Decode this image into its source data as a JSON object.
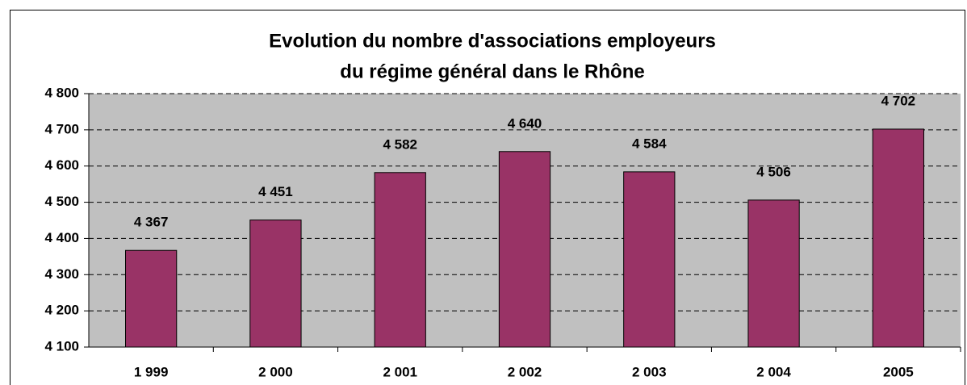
{
  "chart_data": {
    "type": "bar",
    "title": [
      "Evolution du nombre d'associations employeurs",
      "du régime général dans le Rhône"
    ],
    "categories": [
      "1 999",
      "2 000",
      "2 001",
      "2 002",
      "2 003",
      "2 004",
      "2005"
    ],
    "values": [
      4367,
      4451,
      4582,
      4640,
      4584,
      4506,
      4702
    ],
    "value_labels": [
      "4 367",
      "4 451",
      "4 582",
      "4 640",
      "4 584",
      "4 506",
      "4 702"
    ],
    "color": "#993366",
    "ylim": [
      4100,
      4800
    ],
    "yticks": [
      {
        "value": 4100,
        "label": "4 100"
      },
      {
        "value": 4200,
        "label": "4 200"
      },
      {
        "value": 4300,
        "label": "4 300"
      },
      {
        "value": 4400,
        "label": "4 400"
      },
      {
        "value": 4500,
        "label": "4 500"
      },
      {
        "value": 4600,
        "label": "4 600"
      },
      {
        "value": 4700,
        "label": "4 700"
      },
      {
        "value": 4800,
        "label": "4 800"
      }
    ],
    "grid": true
  }
}
